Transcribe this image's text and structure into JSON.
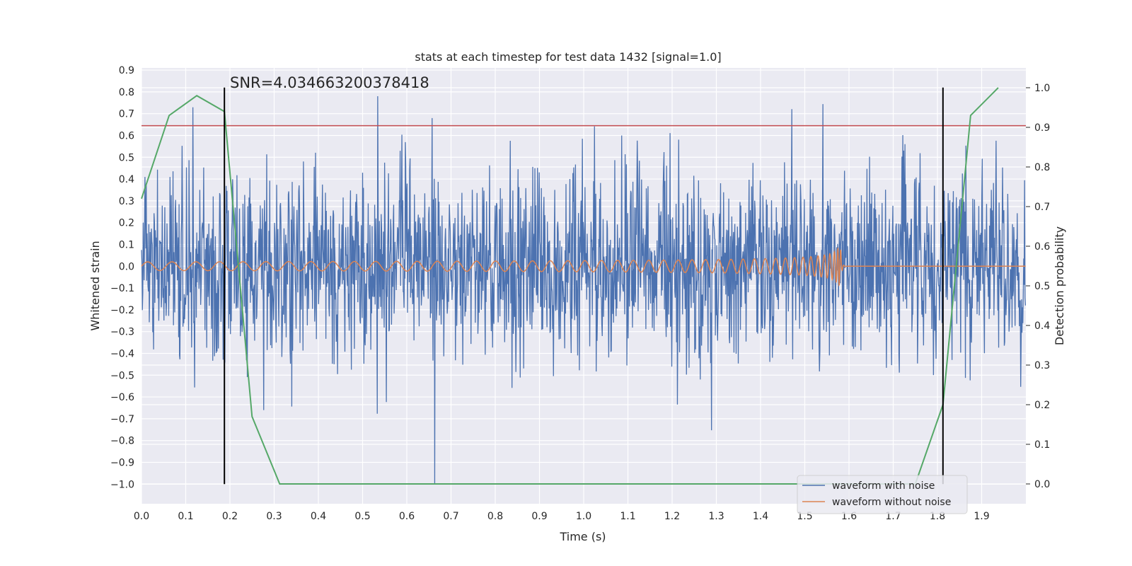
{
  "chart_data": {
    "type": "line",
    "title": "stats at each timestep for test data 1432 [signal=1.0]",
    "xlabel": "Time (s)",
    "ylabel": "Whitened strain",
    "y2label": "Detection probability",
    "xlim": [
      0.0,
      2.0
    ],
    "ylim": [
      -1.09,
      0.91
    ],
    "y2lim": [
      -0.05,
      1.05
    ],
    "xticks": [
      "0.0",
      "0.1",
      "0.2",
      "0.3",
      "0.4",
      "0.5",
      "0.6",
      "0.7",
      "0.8",
      "0.9",
      "1.0",
      "1.1",
      "1.2",
      "1.3",
      "1.4",
      "1.5",
      "1.6",
      "1.7",
      "1.8",
      "1.9"
    ],
    "yticks": [
      "0.9",
      "0.8",
      "0.7",
      "0.6",
      "0.5",
      "0.4",
      "0.3",
      "0.2",
      "0.1",
      "0.0",
      "−0.1",
      "−0.2",
      "−0.3",
      "−0.4",
      "−0.5",
      "−0.6",
      "−0.7",
      "−0.8",
      "−0.9",
      "−1.0"
    ],
    "y2ticks": [
      "0.0",
      "0.1",
      "0.2",
      "0.3",
      "0.4",
      "0.5",
      "0.6",
      "0.7",
      "0.8",
      "0.9",
      "1.0"
    ],
    "annotation": "SNR=4.034663200378418",
    "threshold_y": 0.645,
    "vlines_x": [
      0.1875,
      1.8125
    ],
    "vline_ymin": -1.0,
    "vline_ymax": 0.82,
    "legend_position": "lower-right",
    "series": [
      {
        "name": "waveform with noise",
        "color": "#4c72b0",
        "style": "noise",
        "amplitude": 0.35,
        "samples": 2048
      },
      {
        "name": "waveform without noise",
        "color": "#dd8452",
        "style": "chirp",
        "merger_time": 1.58
      },
      {
        "name": "detection probability",
        "color": "#55a868",
        "axis": "right",
        "x": [
          0.0,
          0.0625,
          0.125,
          0.1875,
          0.25,
          0.3125,
          0.375,
          0.4375,
          0.5,
          0.5625,
          0.625,
          0.6875,
          0.75,
          0.8125,
          0.875,
          0.9375,
          1.0,
          1.0625,
          1.125,
          1.1875,
          1.25,
          1.3125,
          1.375,
          1.4375,
          1.5,
          1.5625,
          1.625,
          1.6875,
          1.75,
          1.8125,
          1.875,
          1.9375
        ],
        "y": [
          0.72,
          0.93,
          0.98,
          0.94,
          0.17,
          0.0,
          0.0,
          0.0,
          0.0,
          0.0,
          0.0,
          0.0,
          0.0,
          0.0,
          0.0,
          0.0,
          0.0,
          0.0,
          0.0,
          0.0,
          0.0,
          0.0,
          0.0,
          0.0,
          0.0,
          0.0,
          0.0,
          0.0,
          0.0,
          0.2,
          0.93,
          1.0
        ]
      }
    ],
    "colors": {
      "background": "#eaeaf2",
      "grid": "#ffffff",
      "threshold": "#c44e52",
      "vline": "#000000"
    }
  }
}
